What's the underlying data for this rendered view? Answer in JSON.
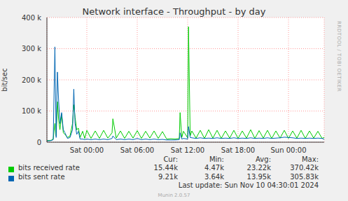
{
  "chart_data": {
    "type": "line",
    "title": "Network interface  - Throughput - by day",
    "y_label": "bit/sec",
    "watermark": "RRDTOOL / TOBI OETIKER",
    "footer": "Munin 2.0.57",
    "last_update": "Last update: Sun Nov 10 04:30:01 2024",
    "stats_columns": [
      "Cur:",
      "Min:",
      "Avg:",
      "Max:"
    ],
    "x": [
      -4.75,
      -4.25,
      -4,
      -3.8,
      -3.65,
      -3.5,
      -3.35,
      -3.2,
      -3,
      -2.8,
      -2.6,
      -2.3,
      -2,
      -1.7,
      -1.55,
      -1.4,
      -1.2,
      -1,
      -0.8,
      -0.5,
      -0.25,
      0,
      0.5,
      1,
      1.5,
      2,
      2.5,
      3,
      3.1,
      3.5,
      4,
      4.5,
      5,
      5.5,
      6,
      6.5,
      7,
      7.5,
      8,
      8.5,
      9,
      9.5,
      10,
      10.5,
      11,
      11.1,
      11.3,
      11.5,
      12,
      12.1,
      12.3,
      12.5,
      13,
      13.5,
      14,
      14.5,
      15,
      15.5,
      16,
      16.5,
      17,
      17.5,
      18,
      18.5,
      19,
      19.5,
      20,
      20.5,
      21,
      21.5,
      22,
      22.5,
      23,
      23.5,
      24,
      24.5,
      25,
      25.5,
      26,
      26.5,
      27,
      27.5,
      28,
      28.25
    ],
    "xlim": [
      -4.75,
      28.25
    ],
    "xticks": [
      {
        "value": 0,
        "label": "Sat 00:00"
      },
      {
        "value": 6,
        "label": "Sat 06:00"
      },
      {
        "value": 12,
        "label": "Sat 12:00"
      },
      {
        "value": 18,
        "label": "Sat 18:00"
      },
      {
        "value": 24,
        "label": "Sun 00:00"
      }
    ],
    "ylim": [
      0,
      400000
    ],
    "yticks": [
      0,
      {
        "value": 100000,
        "label": "100 k"
      },
      {
        "value": 200000,
        "label": "200 k"
      },
      {
        "value": 300000,
        "label": "300 k"
      },
      {
        "value": 400000,
        "label": "400 k"
      }
    ],
    "grid": true,
    "legend": "bottom",
    "series": [
      {
        "name": "bits received rate",
        "color": "#00cc00",
        "stats": [
          "15.44k",
          "4.47k",
          "23.22k",
          "370.42k"
        ],
        "values": [
          5000,
          6000,
          10000,
          60000,
          20000,
          130000,
          70000,
          40000,
          90000,
          30000,
          25000,
          15000,
          20000,
          60000,
          120000,
          80000,
          40000,
          45000,
          15000,
          35000,
          12000,
          38000,
          12000,
          36000,
          12000,
          38000,
          13000,
          30000,
          75000,
          13000,
          36000,
          12000,
          35000,
          13000,
          37000,
          12000,
          35000,
          13000,
          36000,
          12000,
          34000,
          10000,
          11000,
          10000,
          12000,
          95000,
          15000,
          35000,
          14000,
          370420,
          20000,
          36000,
          13000,
          38000,
          12000,
          40000,
          13000,
          38000,
          12000,
          36000,
          13000,
          38000,
          12000,
          36000,
          13000,
          40000,
          12000,
          37000,
          13000,
          38000,
          12000,
          36000,
          13000,
          38000,
          12000,
          36000,
          13000,
          38000,
          12000,
          36000,
          13000,
          35000,
          12000,
          15440
        ]
      },
      {
        "name": "bits sent rate",
        "color": "#0066b3",
        "stats": [
          "9.21k",
          "3.64k",
          "13.95k",
          "305.83k"
        ],
        "values": [
          4000,
          5000,
          8000,
          305830,
          15000,
          225000,
          130000,
          60000,
          95000,
          40000,
          30000,
          12000,
          15000,
          40000,
          170000,
          60000,
          25000,
          35000,
          10000,
          10000,
          8000,
          10000,
          8000,
          10000,
          8000,
          10000,
          8000,
          12000,
          20000,
          8000,
          10000,
          8000,
          10000,
          8000,
          12000,
          8000,
          10000,
          8000,
          10000,
          8000,
          9000,
          7000,
          7000,
          7000,
          8000,
          30000,
          10000,
          12000,
          10000,
          50000,
          15000,
          14000,
          12000,
          14000,
          12000,
          13000,
          12000,
          14000,
          12000,
          13000,
          12000,
          14000,
          12000,
          13000,
          12000,
          14000,
          12000,
          13000,
          12000,
          14000,
          12000,
          13000,
          14000,
          16000,
          15000,
          14000,
          12000,
          13000,
          12000,
          13000,
          12000,
          13000,
          12000,
          9210
        ]
      }
    ]
  }
}
